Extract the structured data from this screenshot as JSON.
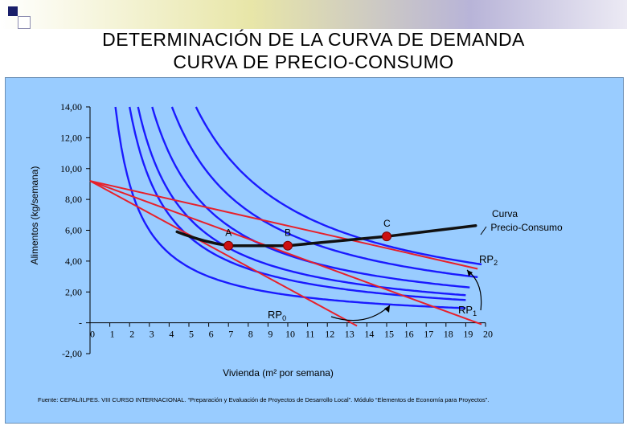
{
  "header": {
    "title_line1": "DETERMINACIÓN DE LA CURVA DE DEMANDA",
    "title_line2": "CURVA DE PRECIO-CONSUMO"
  },
  "colors": {
    "background": "#99ccff",
    "indifference": "#1a1aff",
    "budget": "#e8202a",
    "pcc": "#111111",
    "point": "#cc1111"
  },
  "chart_data": {
    "type": "line",
    "ylabel": "Alimentos (kg/semana)",
    "xlabel": "Vivienda (m² por semana)",
    "x_ticks": [
      "0",
      "1",
      "2",
      "3",
      "4",
      "5",
      "6",
      "7",
      "8",
      "9",
      "10",
      "11",
      "12",
      "13",
      "14",
      "15",
      "16",
      "17",
      "18",
      "19",
      "20"
    ],
    "y_ticks": [
      "14,00",
      "12,00",
      "10,00",
      "8,00",
      "6,00",
      "4,00",
      "2,00",
      "-",
      "-2,00"
    ],
    "xlim": [
      0,
      20
    ],
    "ylim": [
      -2,
      14
    ],
    "indifference_curves": [
      {
        "k": 18,
        "xmax": 19
      },
      {
        "k": 28,
        "xmax": 19
      },
      {
        "k": 34,
        "xmax": 19
      },
      {
        "k": 44,
        "xmax": 19.2
      },
      {
        "k": 58,
        "xmax": 19.6
      },
      {
        "k": 75,
        "xmax": 19.8
      }
    ],
    "budget_lines": [
      {
        "name": "RP0",
        "x0": 0,
        "y0": 9.2,
        "x1": 13.5,
        "y1": -0.2
      },
      {
        "name": "RP1",
        "x0": 0,
        "y0": 9.2,
        "x1": 19.8,
        "y1": -0.1
      },
      {
        "name": "RP2",
        "x0": 0,
        "y0": 9.2,
        "x1": 19.6,
        "y1": 3.5
      }
    ],
    "price_consumption_curve": [
      [
        4.4,
        5.9
      ],
      [
        7,
        5.0
      ],
      [
        10,
        5.0
      ],
      [
        15,
        5.6
      ],
      [
        19.5,
        6.3
      ]
    ],
    "points": [
      {
        "label": "A",
        "x": 7,
        "y": 5.0
      },
      {
        "label": "B",
        "x": 10,
        "y": 5.0
      },
      {
        "label": "C",
        "x": 15,
        "y": 5.6
      }
    ],
    "annotations": {
      "rp0": "RP",
      "rp0_sub": "0",
      "rp1": "RP",
      "rp1_sub": "1",
      "rp2": "RP",
      "rp2_sub": "2",
      "pcc_label_line1": "Curva",
      "pcc_label_line2": "Precio-Consumo"
    },
    "grid": false,
    "legend": "none"
  },
  "footer": {
    "source": "Fuente: CEPAL/ILPES. VIII CURSO INTERNACIONAL. “Preparación y Evaluación de Proyectos de Desarrollo Local”. Módulo “Elementos de Economía para Proyectos”."
  }
}
